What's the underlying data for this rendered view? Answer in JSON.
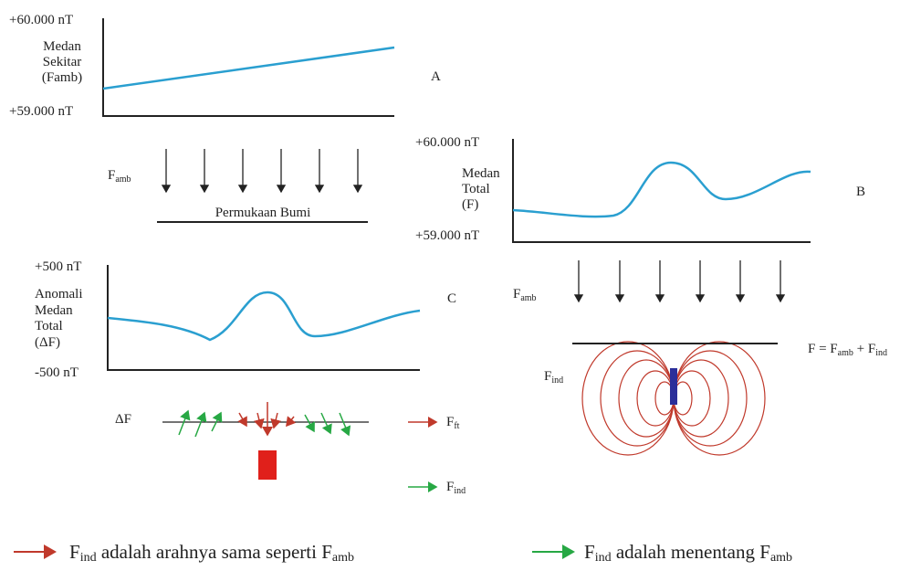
{
  "panel_a": {
    "y_top": "+60.000 nT",
    "y_label": [
      "Medan",
      "Sekitar",
      "(Famb)"
    ],
    "y_bottom": "+59.000 nT",
    "letter": "A",
    "field_label": {
      "base": "F",
      "sub": "amb"
    },
    "surface": "Permukaan Bumi"
  },
  "panel_b": {
    "y_top": "+60.000 nT",
    "y_label": [
      "Medan",
      "Total",
      "(F)"
    ],
    "y_bottom": "+59.000 nT",
    "letter": "B",
    "field_label": {
      "base": "F",
      "sub": "amb"
    },
    "equation": [
      {
        "text": "F = F"
      },
      {
        "sub": "amb"
      },
      {
        "text": " + F"
      },
      {
        "sub": "ind"
      }
    ],
    "induced_label": {
      "base": "F",
      "sub": "ind"
    }
  },
  "panel_c": {
    "y_top": "+500 nT",
    "y_label": [
      "Anomali",
      "Medan",
      "Total",
      "(ΔF)"
    ],
    "y_bottom": "-500 nT",
    "letter": "C",
    "delta_label": "ΔF",
    "legend": [
      {
        "base": "F",
        "sub": "ft"
      },
      {
        "base": "F",
        "sub": "ind"
      }
    ]
  },
  "footer": [
    [
      {
        "text": "F"
      },
      {
        "sub": "ind"
      },
      {
        "text": " adalah arahnya sama seperti F"
      },
      {
        "sub": "amb"
      }
    ],
    [
      {
        "text": "F"
      },
      {
        "sub": "ind"
      },
      {
        "text": " adalah menentang F"
      },
      {
        "sub": "amb"
      }
    ]
  ]
}
